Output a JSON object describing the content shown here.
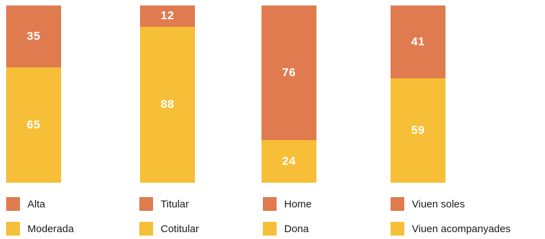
{
  "colors": {
    "top": "#e07b4f",
    "bottom": "#f6bf37"
  },
  "chart_data": {
    "type": "bar",
    "stacked": true,
    "percent": true,
    "grid": false,
    "groups": [
      {
        "segments": [
          {
            "label": "Alta",
            "value": 35,
            "color": "#e07b4f"
          },
          {
            "label": "Moderada",
            "value": 65,
            "color": "#f6bf37"
          }
        ]
      },
      {
        "segments": [
          {
            "label": "Titular",
            "value": 12,
            "color": "#e07b4f"
          },
          {
            "label": "Cotitular",
            "value": 88,
            "color": "#f6bf37"
          }
        ]
      },
      {
        "segments": [
          {
            "label": "Home",
            "value": 76,
            "color": "#e07b4f"
          },
          {
            "label": "Dona",
            "value": 24,
            "color": "#f6bf37"
          }
        ]
      },
      {
        "segments": [
          {
            "label": "Viuen soles",
            "value": 41,
            "color": "#e07b4f"
          },
          {
            "label": "Viuen acompanyades",
            "value": 59,
            "color": "#f6bf37"
          }
        ]
      }
    ]
  }
}
